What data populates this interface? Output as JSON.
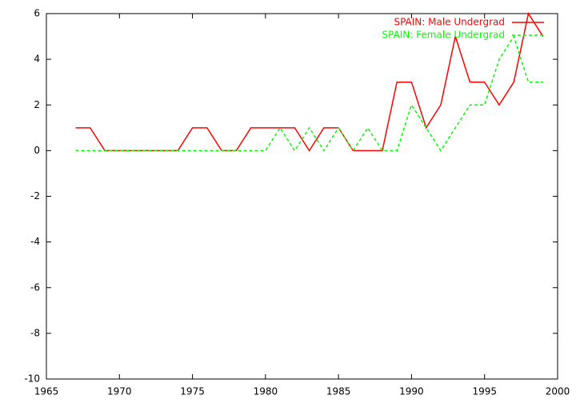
{
  "chart_data": {
    "type": "line",
    "x": [
      1967,
      1968,
      1969,
      1970,
      1971,
      1972,
      1973,
      1974,
      1975,
      1976,
      1977,
      1978,
      1979,
      1980,
      1981,
      1982,
      1983,
      1984,
      1985,
      1986,
      1987,
      1988,
      1989,
      1990,
      1991,
      1992,
      1993,
      1994,
      1995,
      1996,
      1997,
      1998,
      1999
    ],
    "series": [
      {
        "name": "SPAIN: Male Undergrad",
        "color": "#ff0000",
        "dash": false,
        "values": [
          1,
          1,
          0,
          0,
          0,
          0,
          0,
          0,
          1,
          1,
          0,
          0,
          1,
          1,
          1,
          1,
          0,
          1,
          1,
          0,
          0,
          0,
          3,
          3,
          1,
          2,
          5,
          3,
          3,
          2,
          3,
          6,
          5
        ]
      },
      {
        "name": "SPAIN: Female Undergrad",
        "color": "#00ff00",
        "dash": true,
        "values": [
          0,
          0,
          0,
          0,
          0,
          0,
          0,
          0,
          0,
          0,
          0,
          0,
          0,
          0,
          1,
          0,
          1,
          0,
          1,
          0,
          1,
          0,
          0,
          2,
          1,
          0,
          1,
          2,
          2,
          4,
          5,
          3,
          3
        ]
      }
    ],
    "xlim": [
      1965,
      2000
    ],
    "xticks": [
      1965,
      1970,
      1975,
      1980,
      1985,
      1990,
      1995,
      2000
    ],
    "ylim": [
      -10,
      6
    ],
    "yticks": [
      -10,
      -8,
      -6,
      -4,
      -2,
      0,
      2,
      4,
      6
    ],
    "legend": "top-right"
  }
}
